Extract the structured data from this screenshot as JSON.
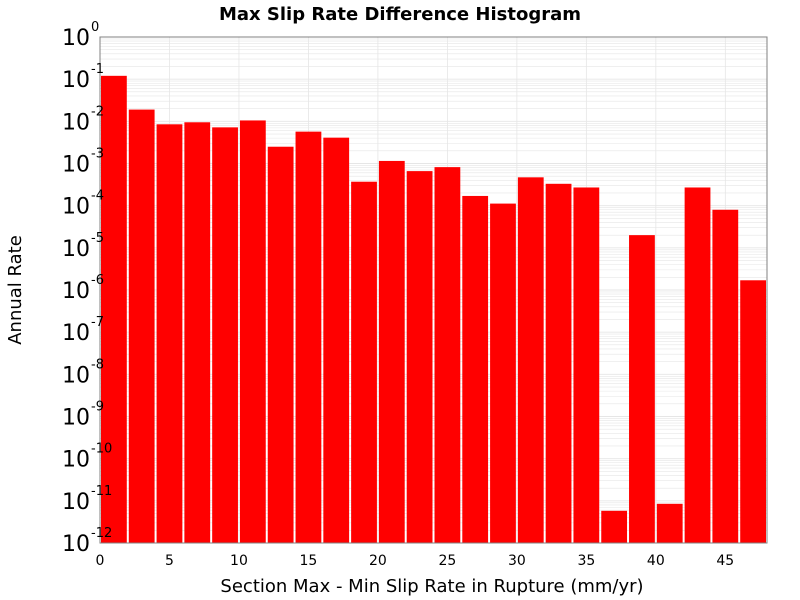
{
  "chart_data": {
    "type": "bar",
    "title": "Max Slip Rate Difference Histogram",
    "xlabel": "Section Max - Min Slip Rate in Rupture (mm/yr)",
    "ylabel": "Annual Rate",
    "y_scale": "log",
    "ylim": [
      1e-12,
      1
    ],
    "xlim": [
      0,
      48
    ],
    "bin_width": 2,
    "x": [
      1,
      3,
      5,
      7,
      9,
      11,
      13,
      15,
      17,
      19,
      21,
      23,
      25,
      27,
      29,
      31,
      33,
      35,
      37,
      39,
      41,
      43,
      45,
      47
    ],
    "values": [
      0.12,
      0.019,
      0.0085,
      0.0095,
      0.0072,
      0.0105,
      0.0025,
      0.0057,
      0.0041,
      0.00037,
      0.00115,
      0.00066,
      0.00082,
      0.00017,
      0.000112,
      0.00047,
      0.00033,
      0.00027,
      5.8e-12,
      2e-05,
      8.5e-12,
      0.00027,
      8e-05,
      1.7e-06
    ],
    "x_ticks": [
      "0",
      "5",
      "10",
      "15",
      "20",
      "25",
      "30",
      "35",
      "40",
      "45"
    ],
    "y_ticks": [
      {
        "base": "10",
        "exp": "0"
      },
      {
        "base": "10",
        "exp": "-1"
      },
      {
        "base": "10",
        "exp": "-2"
      },
      {
        "base": "10",
        "exp": "-3"
      },
      {
        "base": "10",
        "exp": "-4"
      },
      {
        "base": "10",
        "exp": "-5"
      },
      {
        "base": "10",
        "exp": "-6"
      },
      {
        "base": "10",
        "exp": "-7"
      },
      {
        "base": "10",
        "exp": "-8"
      },
      {
        "base": "10",
        "exp": "-9"
      },
      {
        "base": "10",
        "exp": "-10"
      },
      {
        "base": "10",
        "exp": "-11"
      },
      {
        "base": "10",
        "exp": "-12"
      }
    ],
    "grid": true,
    "legend": "none",
    "colors": {
      "bar": "#ff0000",
      "bar_edge": "#ffffff",
      "grid": "#e6e6e6",
      "frame": "#808080"
    }
  }
}
